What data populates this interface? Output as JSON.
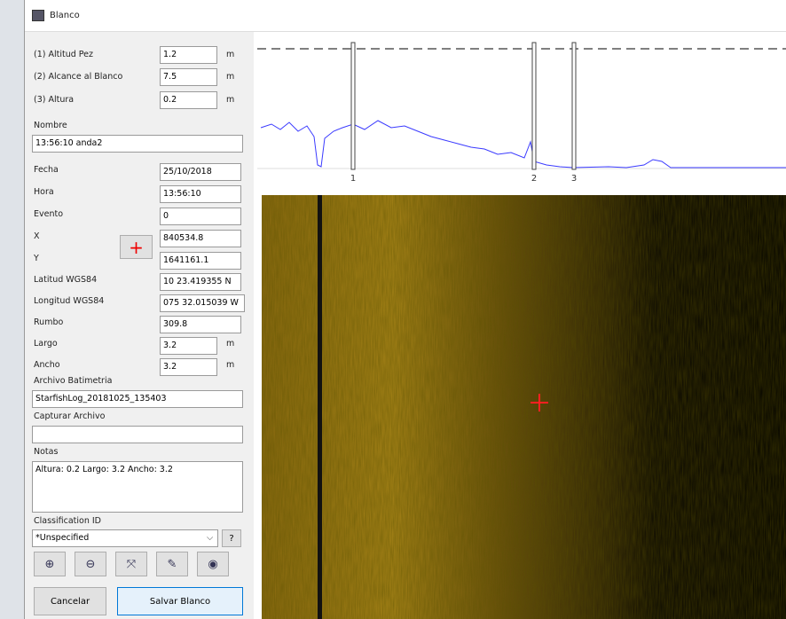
{
  "window": {
    "title": "Blanco"
  },
  "form": {
    "fields": [
      {
        "label": "(1) Altitud Pez",
        "value": "1.2",
        "unit": "m"
      },
      {
        "label": "(2) Alcance al Blanco",
        "value": "7.5",
        "unit": "m"
      },
      {
        "label": "(3) Altura",
        "value": "0.2",
        "unit": "m"
      },
      {
        "label": "Nombre",
        "value": "13:56:10 anda2"
      },
      {
        "label": "Fecha",
        "value": "25/10/2018"
      },
      {
        "label": "Hora",
        "value": "13:56:10"
      },
      {
        "label": "Evento",
        "value": "0"
      },
      {
        "label": "X",
        "value": "840534.8"
      },
      {
        "label": "Y",
        "value": "1641161.1"
      },
      {
        "label": "Latitud WGS84",
        "value": "10 23.419355 N"
      },
      {
        "label": "Longitud WGS84",
        "value": "075 32.015039 W"
      },
      {
        "label": "Rumbo",
        "value": "309.8"
      },
      {
        "label": "Largo",
        "value": "3.2",
        "unit": "m"
      },
      {
        "label": "Ancho",
        "value": "3.2",
        "unit": "m"
      },
      {
        "label": "Archivo Batimetria",
        "value": "StarfishLog_20181025_135403"
      },
      {
        "label": "Capturar Archivo"
      },
      {
        "label": "Notas",
        "value": "Altura: 0.2 Largo: 3.2 Ancho: 3.2"
      },
      {
        "label": "Classification ID",
        "value": "*Unspecified"
      }
    ],
    "help_button": "?",
    "buttons": [
      "Cancelar",
      "Salvar Blanco"
    ]
  },
  "profile": {
    "markers": [
      "1",
      "2",
      "3"
    ]
  }
}
